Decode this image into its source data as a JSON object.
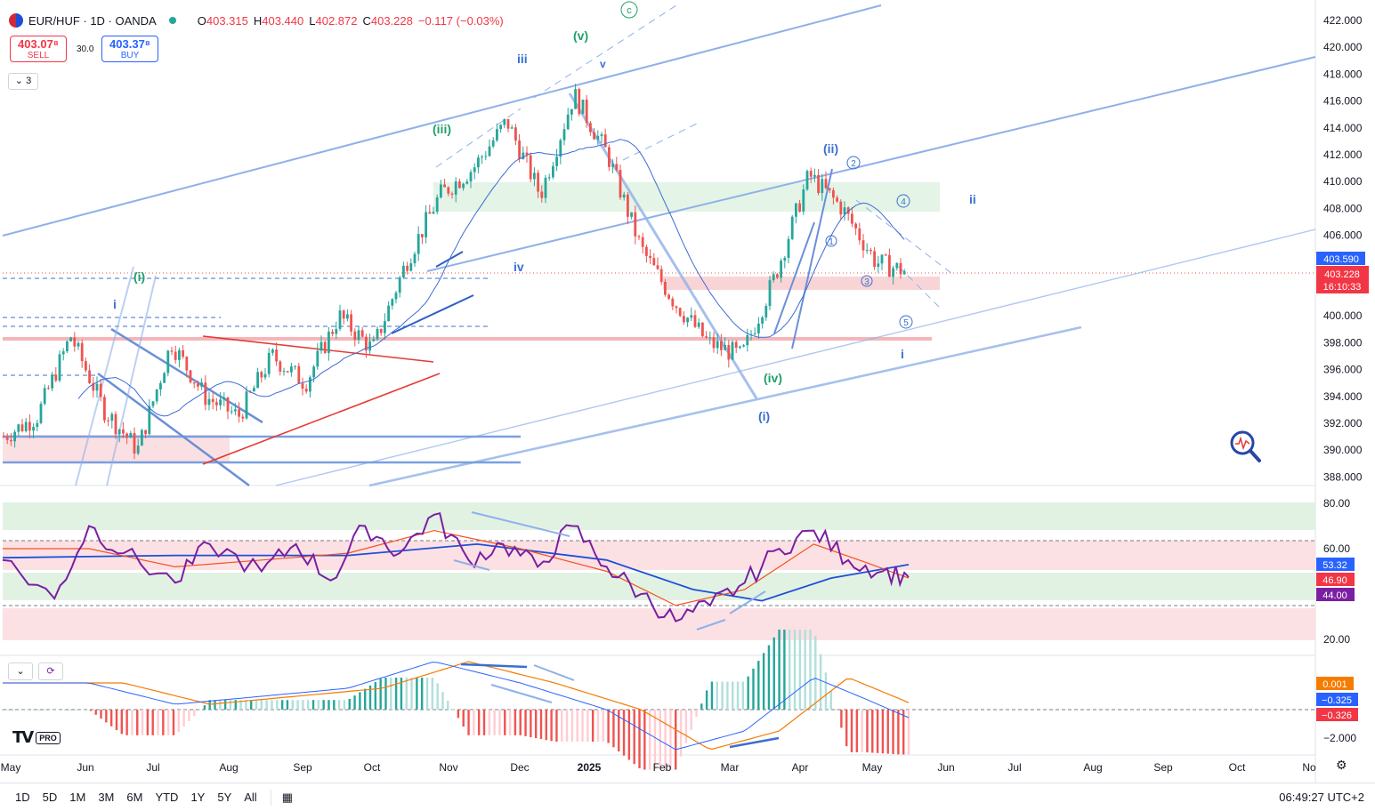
{
  "header": {
    "symbol": "EUR/HUF · 1D · OANDA",
    "o_label": "O",
    "o_value": "403.315",
    "h_label": "H",
    "h_value": "403.440",
    "l_label": "L",
    "l_value": "402.872",
    "c_label": "C",
    "c_value": "403.228",
    "change": "−0.117 (−0.03%)"
  },
  "trade": {
    "sell_price": "403.07⁸",
    "sell_label": "SELL",
    "buy_price": "403.37⁸",
    "buy_label": "BUY",
    "spread": "30.0"
  },
  "collapse_label": "⌄ 3",
  "colors": {
    "up": "#26a69a",
    "down": "#ef5350",
    "wave_blue": "#3b6fd1",
    "wave_green": "#22a06b",
    "trend": "#8fb0ea",
    "rsi": "#7b1fa2",
    "rsi_ma": "#f4511e",
    "rsi_ma2": "#1e4fd8"
  },
  "chart_data": [
    {
      "type": "candlestick",
      "title": "EUR/HUF · 1D · OANDA",
      "x_ticks": [
        "May",
        "Jun",
        "Jul",
        "Aug",
        "Sep",
        "Oct",
        "Nov",
        "Dec",
        "2025",
        "Feb",
        "Mar",
        "Apr",
        "May",
        "Jun",
        "Jul",
        "Aug",
        "Sep",
        "Oct",
        "No"
      ],
      "y_ticks": [
        "422.000",
        "420.000",
        "418.000",
        "416.000",
        "414.000",
        "412.000",
        "410.000",
        "408.000",
        "406.000",
        "400.000",
        "398.000",
        "396.000",
        "394.000",
        "392.000",
        "390.000",
        "388.000"
      ],
      "ylim": [
        387.4,
        422.8
      ],
      "close_path": [
        [
          "May",
          391
        ],
        [
          "Jun",
          392.5
        ],
        [
          "Jun",
          398.5
        ],
        [
          "Jul",
          393
        ],
        [
          "Jul",
          390
        ],
        [
          "Aug",
          398
        ],
        [
          "Aug",
          394
        ],
        [
          "Sep",
          392.5
        ],
        [
          "Sep",
          397
        ],
        [
          "Oct",
          395
        ],
        [
          "Oct",
          400
        ],
        [
          "Oct",
          397.5
        ],
        [
          "Nov",
          404
        ],
        [
          "Nov",
          409
        ],
        [
          "Dec",
          411
        ],
        [
          "Dec",
          414.5
        ],
        [
          "Dec",
          409
        ],
        [
          "2025",
          416.5
        ],
        [
          "2025",
          412
        ],
        [
          "Feb",
          405
        ],
        [
          "Feb",
          401
        ],
        [
          "Mar",
          398
        ],
        [
          "Mar",
          397
        ],
        [
          "Apr",
          403
        ],
        [
          "Apr",
          410.5
        ],
        [
          "Apr",
          408
        ],
        [
          "May",
          404
        ],
        [
          "May",
          403.228
        ]
      ],
      "price_labels": [
        "403.590",
        "403.228",
        "16:10:33"
      ],
      "wave_labels_blue": [
        "iii",
        "v",
        "iv",
        "i",
        "(ii)",
        "ii",
        "(i)",
        "i"
      ],
      "wave_labels_green": [
        "(v)",
        "(iii)",
        "(i)",
        "(iv)",
        "c"
      ],
      "circled_numbers": [
        "1",
        "2",
        "3",
        "4",
        "5"
      ]
    },
    {
      "type": "line",
      "name_rsi": "RSI",
      "y_ticks": [
        "80.00",
        "60.00",
        "20.00"
      ],
      "ylim": [
        15,
        83
      ],
      "rsi": [
        [
          0,
          55
        ],
        [
          6,
          38
        ],
        [
          10,
          70
        ],
        [
          14,
          58
        ],
        [
          20,
          45
        ],
        [
          24,
          62
        ],
        [
          30,
          50
        ],
        [
          34,
          62
        ],
        [
          38,
          46
        ],
        [
          42,
          70
        ],
        [
          46,
          58
        ],
        [
          50,
          75
        ],
        [
          54,
          55
        ],
        [
          58,
          62
        ],
        [
          62,
          52
        ],
        [
          66,
          70
        ],
        [
          70,
          52
        ],
        [
          74,
          40
        ],
        [
          78,
          28
        ],
        [
          82,
          35
        ],
        [
          86,
          45
        ],
        [
          90,
          60
        ],
        [
          94,
          68
        ],
        [
          98,
          55
        ],
        [
          102,
          50
        ],
        [
          105,
          47.5
        ]
      ],
      "rsi_ma": [
        [
          0,
          60
        ],
        [
          10,
          60
        ],
        [
          20,
          52
        ],
        [
          30,
          55
        ],
        [
          40,
          58
        ],
        [
          50,
          68
        ],
        [
          60,
          60
        ],
        [
          70,
          50
        ],
        [
          78,
          35
        ],
        [
          86,
          42
        ],
        [
          94,
          62
        ],
        [
          100,
          54
        ],
        [
          105,
          47
        ]
      ],
      "rsi_ma2": [
        [
          0,
          56
        ],
        [
          20,
          57
        ],
        [
          40,
          57
        ],
        [
          55,
          62
        ],
        [
          70,
          55
        ],
        [
          80,
          42
        ],
        [
          88,
          37
        ],
        [
          96,
          47
        ],
        [
          105,
          53
        ]
      ],
      "values": [
        "53.32",
        "46.90",
        "44.00"
      ]
    },
    {
      "type": "bar",
      "name_macd": "MACD",
      "y_ticks": [
        "−2.000"
      ],
      "values": [
        "0.001",
        "−0.325",
        "−0.326"
      ]
    }
  ],
  "timeframes": [
    "1D",
    "5D",
    "1M",
    "3M",
    "6M",
    "YTD",
    "1Y",
    "5Y",
    "All"
  ],
  "clock": "06:49:27 UTC+2",
  "logo_pro": "PRO"
}
